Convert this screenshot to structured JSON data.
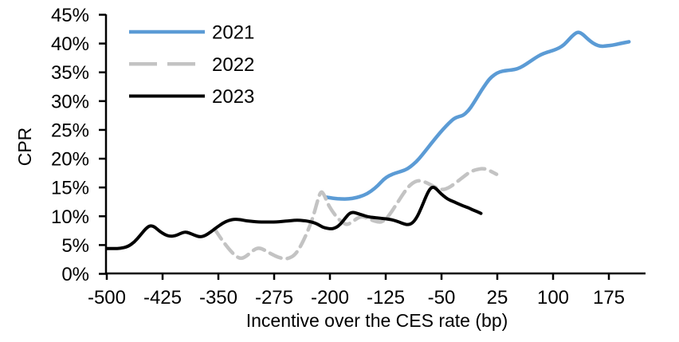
{
  "chart_data": {
    "type": "line",
    "title": "",
    "xlabel": "Incentive over the CES rate (bp)",
    "ylabel": "CPR",
    "xlim": [
      -500,
      223
    ],
    "ylim": [
      0,
      45
    ],
    "grid": false,
    "legend_position": "top-left-inside",
    "x_ticks": [
      -500,
      -425,
      -350,
      -275,
      -200,
      -125,
      -50,
      25,
      100,
      175
    ],
    "y_ticks": [
      0,
      5,
      10,
      15,
      20,
      25,
      30,
      35,
      40,
      45
    ],
    "y_tick_suffix": "%",
    "series": [
      {
        "name": "2021",
        "color": "#5B9BD5",
        "style": "solid",
        "width": 4.5,
        "points": [
          [
            -205,
            13.3
          ],
          [
            -195,
            13.1
          ],
          [
            -185,
            13.0
          ],
          [
            -175,
            13.0
          ],
          [
            -165,
            13.2
          ],
          [
            -155,
            13.6
          ],
          [
            -145,
            14.3
          ],
          [
            -135,
            15.4
          ],
          [
            -128,
            16.4
          ],
          [
            -120,
            17.1
          ],
          [
            -112,
            17.5
          ],
          [
            -104,
            17.8
          ],
          [
            -96,
            18.2
          ],
          [
            -88,
            19.0
          ],
          [
            -80,
            20.0
          ],
          [
            -72,
            21.3
          ],
          [
            -64,
            22.6
          ],
          [
            -56,
            23.9
          ],
          [
            -48,
            25.1
          ],
          [
            -40,
            26.2
          ],
          [
            -33,
            27.0
          ],
          [
            -27,
            27.3
          ],
          [
            -21,
            27.5
          ],
          [
            -14,
            28.3
          ],
          [
            -7,
            29.6
          ],
          [
            0,
            31.1
          ],
          [
            7,
            32.5
          ],
          [
            14,
            33.8
          ],
          [
            21,
            34.6
          ],
          [
            28,
            35.1
          ],
          [
            36,
            35.3
          ],
          [
            44,
            35.4
          ],
          [
            52,
            35.6
          ],
          [
            60,
            36.1
          ],
          [
            68,
            36.8
          ],
          [
            76,
            37.5
          ],
          [
            84,
            38.1
          ],
          [
            92,
            38.5
          ],
          [
            100,
            38.8
          ],
          [
            108,
            39.2
          ],
          [
            115,
            39.8
          ],
          [
            122,
            40.8
          ],
          [
            128,
            41.6
          ],
          [
            133,
            42.0
          ],
          [
            138,
            41.8
          ],
          [
            144,
            41.1
          ],
          [
            150,
            40.4
          ],
          [
            157,
            39.8
          ],
          [
            164,
            39.5
          ],
          [
            172,
            39.6
          ],
          [
            180,
            39.7
          ],
          [
            190,
            40.0
          ],
          [
            202,
            40.3
          ]
        ]
      },
      {
        "name": "2022",
        "color": "#C3C3C3",
        "style": "dashed",
        "width": 4.5,
        "points": [
          [
            -355,
            7.8
          ],
          [
            -347,
            6.2
          ],
          [
            -340,
            5.0
          ],
          [
            -333,
            3.9
          ],
          [
            -326,
            3.0
          ],
          [
            -319,
            2.6
          ],
          [
            -312,
            3.1
          ],
          [
            -305,
            3.9
          ],
          [
            -298,
            4.5
          ],
          [
            -292,
            4.4
          ],
          [
            -285,
            3.9
          ],
          [
            -278,
            3.4
          ],
          [
            -270,
            2.9
          ],
          [
            -262,
            2.6
          ],
          [
            -255,
            2.7
          ],
          [
            -248,
            3.2
          ],
          [
            -241,
            4.4
          ],
          [
            -234,
            6.2
          ],
          [
            -227,
            8.3
          ],
          [
            -221,
            10.6
          ],
          [
            -216,
            13.0
          ],
          [
            -212,
            14.4
          ],
          [
            -208,
            13.8
          ],
          [
            -203,
            12.2
          ],
          [
            -197,
            10.9
          ],
          [
            -190,
            9.7
          ],
          [
            -183,
            8.9
          ],
          [
            -177,
            8.5
          ],
          [
            -170,
            9.0
          ],
          [
            -163,
            9.7
          ],
          [
            -157,
            10.0
          ],
          [
            -150,
            9.7
          ],
          [
            -143,
            9.3
          ],
          [
            -136,
            9.0
          ],
          [
            -130,
            9.0
          ],
          [
            -124,
            9.6
          ],
          [
            -117,
            10.8
          ],
          [
            -110,
            12.2
          ],
          [
            -103,
            13.6
          ],
          [
            -96,
            14.9
          ],
          [
            -89,
            15.8
          ],
          [
            -82,
            16.2
          ],
          [
            -75,
            16.1
          ],
          [
            -68,
            15.7
          ],
          [
            -61,
            15.2
          ],
          [
            -54,
            14.8
          ],
          [
            -48,
            14.6
          ],
          [
            -41,
            14.9
          ],
          [
            -34,
            15.5
          ],
          [
            -27,
            16.2
          ],
          [
            -20,
            16.9
          ],
          [
            -13,
            17.6
          ],
          [
            -6,
            18.0
          ],
          [
            0,
            18.2
          ],
          [
            6,
            18.3
          ],
          [
            12,
            18.1
          ],
          [
            18,
            17.7
          ],
          [
            24,
            17.3
          ]
        ]
      },
      {
        "name": "2023",
        "color": "#000000",
        "style": "solid",
        "width": 4,
        "points": [
          [
            -500,
            4.4
          ],
          [
            -490,
            4.4
          ],
          [
            -482,
            4.4
          ],
          [
            -472,
            4.7
          ],
          [
            -463,
            5.5
          ],
          [
            -455,
            6.7
          ],
          [
            -448,
            7.8
          ],
          [
            -442,
            8.4
          ],
          [
            -436,
            8.2
          ],
          [
            -429,
            7.4
          ],
          [
            -422,
            6.8
          ],
          [
            -415,
            6.5
          ],
          [
            -408,
            6.6
          ],
          [
            -401,
            7.0
          ],
          [
            -395,
            7.3
          ],
          [
            -389,
            7.1
          ],
          [
            -382,
            6.7
          ],
          [
            -375,
            6.4
          ],
          [
            -368,
            6.6
          ],
          [
            -360,
            7.3
          ],
          [
            -352,
            8.1
          ],
          [
            -344,
            8.8
          ],
          [
            -336,
            9.3
          ],
          [
            -328,
            9.5
          ],
          [
            -320,
            9.4
          ],
          [
            -312,
            9.2
          ],
          [
            -304,
            9.1
          ],
          [
            -296,
            9.0
          ],
          [
            -288,
            9.0
          ],
          [
            -280,
            9.0
          ],
          [
            -272,
            9.0
          ],
          [
            -264,
            9.1
          ],
          [
            -256,
            9.2
          ],
          [
            -248,
            9.3
          ],
          [
            -240,
            9.3
          ],
          [
            -232,
            9.2
          ],
          [
            -224,
            9.0
          ],
          [
            -216,
            8.6
          ],
          [
            -210,
            8.1
          ],
          [
            -204,
            7.9
          ],
          [
            -198,
            7.8
          ],
          [
            -192,
            8.0
          ],
          [
            -186,
            8.6
          ],
          [
            -180,
            9.6
          ],
          [
            -174,
            10.5
          ],
          [
            -169,
            10.7
          ],
          [
            -163,
            10.5
          ],
          [
            -156,
            10.2
          ],
          [
            -149,
            9.9
          ],
          [
            -142,
            9.8
          ],
          [
            -135,
            9.7
          ],
          [
            -128,
            9.6
          ],
          [
            -121,
            9.5
          ],
          [
            -114,
            9.3
          ],
          [
            -107,
            9.0
          ],
          [
            -101,
            8.7
          ],
          [
            -95,
            8.5
          ],
          [
            -89,
            8.8
          ],
          [
            -83,
            9.8
          ],
          [
            -77,
            11.5
          ],
          [
            -71,
            13.4
          ],
          [
            -66,
            14.7
          ],
          [
            -62,
            15.1
          ],
          [
            -58,
            14.9
          ],
          [
            -53,
            14.2
          ],
          [
            -48,
            13.6
          ],
          [
            -42,
            13.0
          ],
          [
            -35,
            12.6
          ],
          [
            -28,
            12.2
          ],
          [
            -21,
            11.8
          ],
          [
            -14,
            11.5
          ],
          [
            -8,
            11.1
          ],
          [
            -2,
            10.8
          ],
          [
            3,
            10.5
          ]
        ]
      }
    ]
  },
  "colors": {
    "background": "#FFFFFF",
    "axis": "#000000",
    "text": "#000000"
  }
}
